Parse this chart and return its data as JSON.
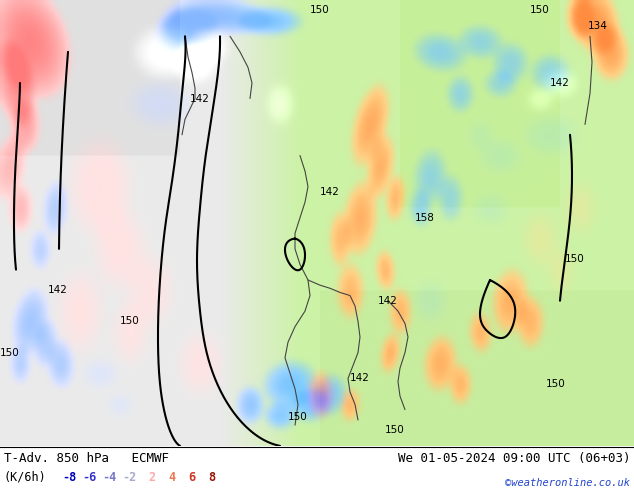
{
  "title_left": "T-Adv. 850 hPa   ECMWF",
  "title_right": "We 01-05-2024 09:00 UTC (06+03)",
  "unit_label": "(K/6h)",
  "colorbar_values": [
    "-8",
    "-6",
    "-4",
    "-2",
    "2",
    "4",
    "6",
    "8"
  ],
  "neg_colors": [
    "#0000cc",
    "#3333dd",
    "#6666ee",
    "#9999cc"
  ],
  "pos_colors": [
    "#ffaaaa",
    "#ee6644",
    "#cc2200",
    "#990000"
  ],
  "copyright": "©weatheronline.co.uk",
  "map_bg_left": "#e8e8e8",
  "map_bg_right": "#c8f0a0",
  "bottom_bar_color": "#ffffff",
  "title_color": "#000000",
  "font_size_title": 9,
  "font_size_label": 8.5,
  "contour_color": "#000000",
  "contour_lw": 1.4,
  "label_fontsize": 7.5,
  "label_color": "#000000"
}
